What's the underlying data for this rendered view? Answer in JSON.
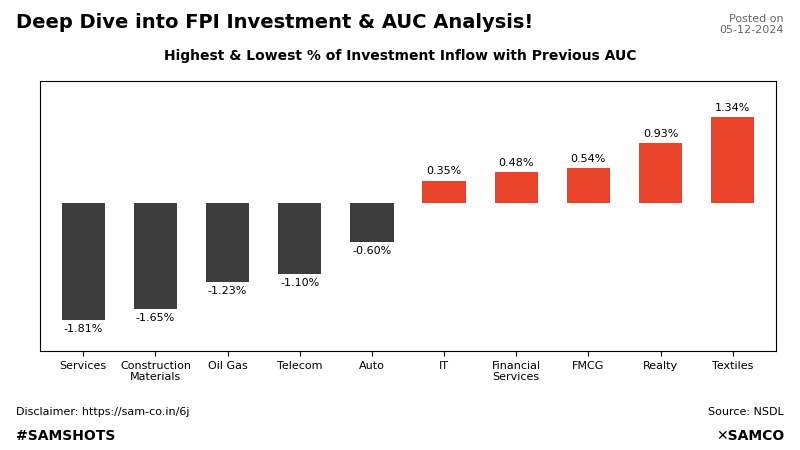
{
  "chart_data": {
    "type": "bar",
    "title": "Deep Dive into FPI Investment & AUC Analysis!",
    "subtitle": "Highest & Lowest % of Investment Inflow with Previous AUC",
    "annotations": [
      "Posted on\n05-12-2024",
      "Disclaimer: https://sam-co.in/6j",
      "Source: NSDL",
      "#SAMSHOTS",
      "✕SAMCO"
    ],
    "categories": [
      "Services",
      "Construction\nMaterials",
      "Oil Gas",
      "Telecom",
      "Auto",
      "IT",
      "Financial\nServices",
      "FMCG",
      "Realty",
      "Textiles"
    ],
    "values": [
      -1.81,
      -1.65,
      -1.23,
      -1.1,
      -0.6,
      0.35,
      0.48,
      0.54,
      0.93,
      1.34
    ],
    "value_labels": [
      "-1.81%",
      "-1.65%",
      "-1.23%",
      "-1.10%",
      "-0.60%",
      "0.35%",
      "0.48%",
      "0.54%",
      "0.93%",
      "1.34%"
    ],
    "colors": [
      "#3d3d3d",
      "#3d3d3d",
      "#3d3d3d",
      "#3d3d3d",
      "#3d3d3d",
      "#e8442a",
      "#e8442a",
      "#e8442a",
      "#e8442a",
      "#e8442a"
    ],
    "data_labels": true,
    "ylim": [
      -2.3,
      1.9
    ],
    "tick_labels": "x",
    "grid": false
  }
}
